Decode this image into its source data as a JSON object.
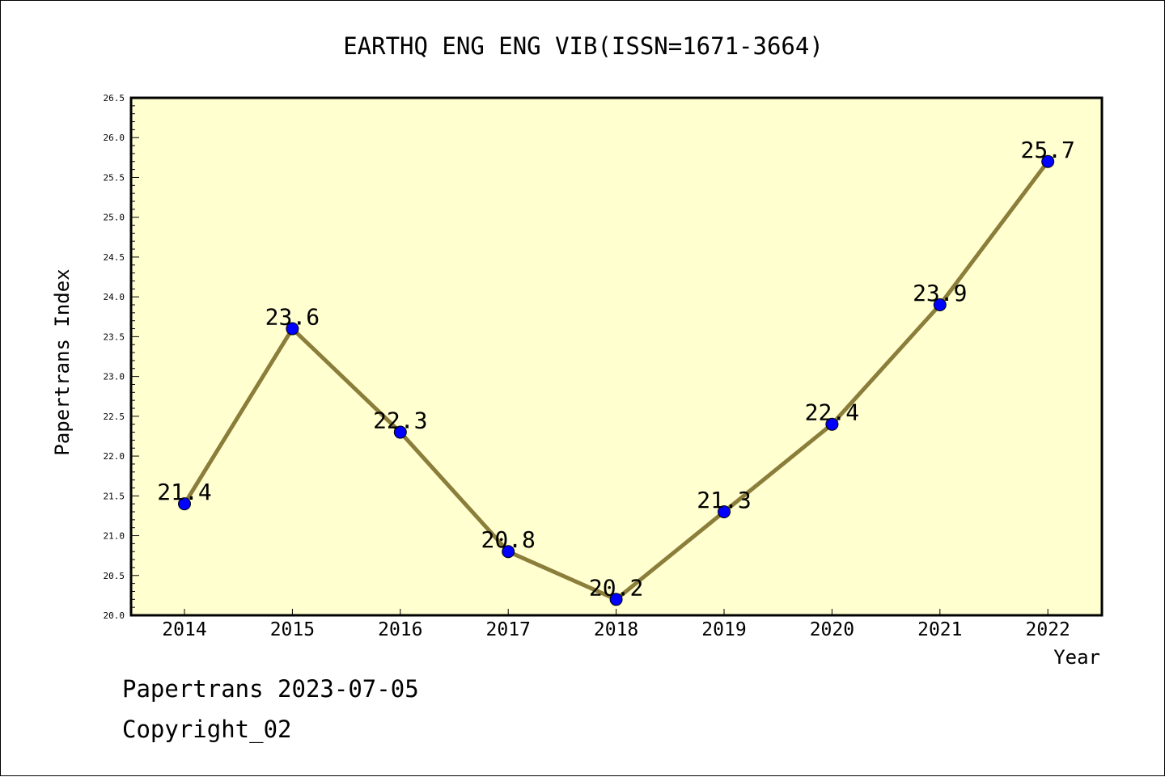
{
  "chart_data": {
    "type": "line",
    "title": "EARTHQ ENG ENG VIB(ISSN=1671-3664)",
    "xlabel": "Year",
    "ylabel": "Papertrans Index",
    "categories": [
      "2014",
      "2015",
      "2016",
      "2017",
      "2018",
      "2019",
      "2020",
      "2021",
      "2022"
    ],
    "values": [
      21.4,
      23.6,
      22.3,
      20.8,
      20.2,
      21.3,
      22.4,
      23.9,
      25.7
    ],
    "data_labels": [
      "21.4",
      "23.6",
      "22.3",
      "20.8",
      "20.2",
      "21.3",
      "22.4",
      "23.9",
      "25.7"
    ],
    "ylim": [
      20.0,
      26.5
    ],
    "y_ticks": [
      "20.0",
      "20.5",
      "21.0",
      "21.5",
      "22.0",
      "22.5",
      "23.0",
      "23.5",
      "24.0",
      "24.5",
      "25.0",
      "25.5",
      "26.0",
      "26.5"
    ],
    "grid": false,
    "colors": {
      "plot_background": "#ffffd0",
      "line": "#8b7d3a",
      "marker": "#0000ff"
    }
  },
  "footer": {
    "line1": "Papertrans 2023-07-05",
    "line2": "Copyright_02"
  }
}
